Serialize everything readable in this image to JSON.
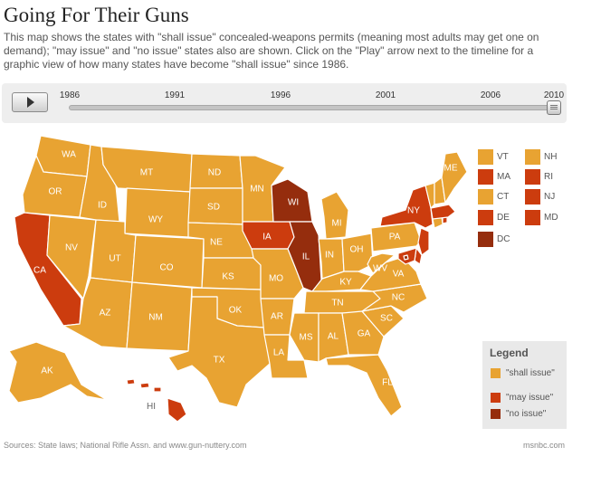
{
  "header": {
    "title": "Going For Their Guns",
    "description": "This map shows the states with \"shall issue\" concealed-weapons permits (meaning most adults may get one on demand); \"may issue\" and \"no issue\" states also are shown. Click on the \"Play\" arrow next to the timeline for a graphic view of how many states have become \"shall issue\" since 1986."
  },
  "colors": {
    "shall_issue": "#e8a332",
    "may_issue": "#cc3c0e",
    "no_issue": "#952d0d",
    "background": "#ffffff"
  },
  "timeline": {
    "play_icon": "play-icon",
    "years": [
      "1986",
      "1991",
      "1996",
      "2001",
      "2006",
      "2010"
    ],
    "selected_year": "2010"
  },
  "states": [
    {
      "abbr": "WA",
      "status": "shall issue"
    },
    {
      "abbr": "OR",
      "status": "shall issue"
    },
    {
      "abbr": "CA",
      "status": "may issue"
    },
    {
      "abbr": "NV",
      "status": "shall issue"
    },
    {
      "abbr": "ID",
      "status": "shall issue"
    },
    {
      "abbr": "MT",
      "status": "shall issue"
    },
    {
      "abbr": "WY",
      "status": "shall issue"
    },
    {
      "abbr": "UT",
      "status": "shall issue"
    },
    {
      "abbr": "AZ",
      "status": "shall issue"
    },
    {
      "abbr": "CO",
      "status": "shall issue"
    },
    {
      "abbr": "NM",
      "status": "shall issue"
    },
    {
      "abbr": "ND",
      "status": "shall issue"
    },
    {
      "abbr": "SD",
      "status": "shall issue"
    },
    {
      "abbr": "NE",
      "status": "shall issue"
    },
    {
      "abbr": "KS",
      "status": "shall issue"
    },
    {
      "abbr": "OK",
      "status": "shall issue"
    },
    {
      "abbr": "TX",
      "status": "shall issue"
    },
    {
      "abbr": "MN",
      "status": "shall issue"
    },
    {
      "abbr": "IA",
      "status": "may issue"
    },
    {
      "abbr": "MO",
      "status": "shall issue"
    },
    {
      "abbr": "AR",
      "status": "shall issue"
    },
    {
      "abbr": "LA",
      "status": "shall issue"
    },
    {
      "abbr": "WI",
      "status": "no issue"
    },
    {
      "abbr": "IL",
      "status": "no issue"
    },
    {
      "abbr": "MI",
      "status": "shall issue"
    },
    {
      "abbr": "IN",
      "status": "shall issue"
    },
    {
      "abbr": "OH",
      "status": "shall issue"
    },
    {
      "abbr": "KY",
      "status": "shall issue"
    },
    {
      "abbr": "TN",
      "status": "shall issue"
    },
    {
      "abbr": "MS",
      "status": "shall issue"
    },
    {
      "abbr": "AL",
      "status": "shall issue"
    },
    {
      "abbr": "GA",
      "status": "shall issue"
    },
    {
      "abbr": "FL",
      "status": "shall issue"
    },
    {
      "abbr": "SC",
      "status": "shall issue"
    },
    {
      "abbr": "NC",
      "status": "shall issue"
    },
    {
      "abbr": "VA",
      "status": "shall issue"
    },
    {
      "abbr": "WV",
      "status": "shall issue"
    },
    {
      "abbr": "PA",
      "status": "shall issue"
    },
    {
      "abbr": "NY",
      "status": "may issue"
    },
    {
      "abbr": "ME",
      "status": "shall issue"
    },
    {
      "abbr": "AK",
      "status": "shall issue"
    },
    {
      "abbr": "HI",
      "status": "may issue"
    }
  ],
  "small_states": [
    {
      "abbr": "VT",
      "status": "shall issue"
    },
    {
      "abbr": "NH",
      "status": "shall issue"
    },
    {
      "abbr": "MA",
      "status": "may issue"
    },
    {
      "abbr": "RI",
      "status": "may issue"
    },
    {
      "abbr": "CT",
      "status": "shall issue"
    },
    {
      "abbr": "NJ",
      "status": "may issue"
    },
    {
      "abbr": "DE",
      "status": "may issue"
    },
    {
      "abbr": "MD",
      "status": "may issue"
    },
    {
      "abbr": "DC",
      "status": "no issue"
    }
  ],
  "legend": {
    "title": "Legend",
    "items": [
      {
        "label": "\"shall issue\"",
        "key": "shall_issue"
      },
      {
        "label": "\"may issue\"",
        "key": "may_issue"
      },
      {
        "label": "\"no issue\"",
        "key": "no_issue"
      }
    ]
  },
  "footer": {
    "source": "Sources: State laws; National Rifle Assn. and www.gun-nuttery.com",
    "credit": "msnbc.com"
  }
}
